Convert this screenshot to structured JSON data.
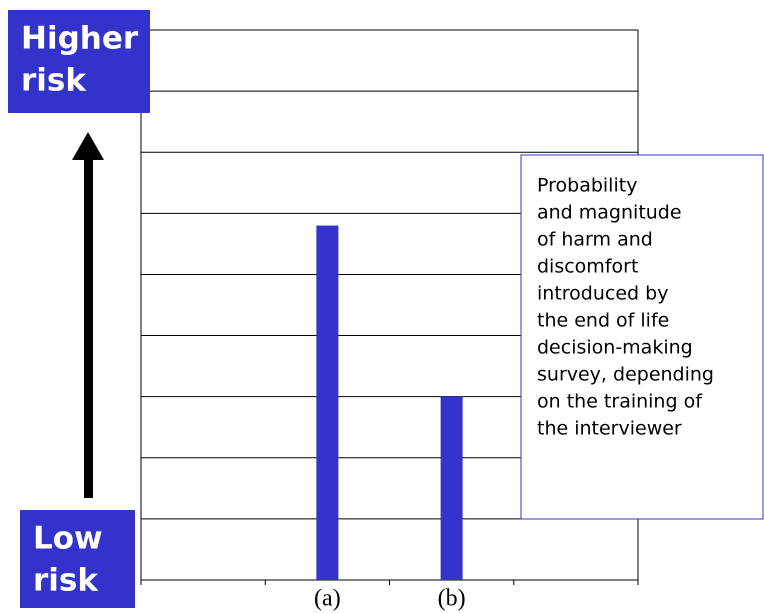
{
  "chart_data": {
    "type": "bar",
    "categories": [
      null,
      "(a)",
      "(b)",
      null
    ],
    "values": [
      null,
      5.8,
      3.0,
      null
    ],
    "color": "#3333cc",
    "ylim": [
      0,
      9
    ],
    "yticks": [
      0,
      1,
      2,
      3,
      4,
      5,
      6,
      7,
      8,
      9
    ],
    "grid": true,
    "annotations": {
      "high": [
        "Higher",
        "risk"
      ],
      "low": [
        "Low",
        "risk"
      ],
      "note": [
        "Probability",
        "and magnitude",
        "of harm and",
        "discomfort",
        "introduced by",
        "the end of life",
        "decision-making",
        "survey, depending",
        "on the training of",
        "the interviewer"
      ]
    }
  }
}
